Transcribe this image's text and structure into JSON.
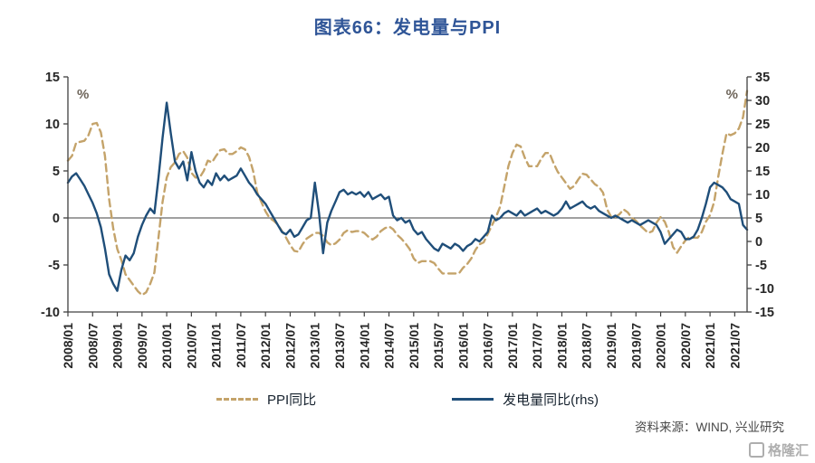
{
  "title": "图表66：发电量与PPI",
  "colors": {
    "title": "#2F5597",
    "ppi": "#C4A36A",
    "power": "#1F4E79",
    "axis": "#404040"
  },
  "left_axis": {
    "unit": "%",
    "min": -10,
    "max": 15,
    "step": 5
  },
  "right_axis": {
    "unit": "%",
    "min": -15,
    "max": 35,
    "step": 5
  },
  "legend": [
    {
      "label": "PPI同比",
      "style": "dashed",
      "color": "#C4A36A"
    },
    {
      "label": "发电量同比(rhs)",
      "style": "solid",
      "color": "#1F4E79"
    }
  ],
  "source": "资料来源：WIND, 兴业研究",
  "watermark": {
    "text": "格隆汇"
  },
  "chart_data": {
    "type": "line",
    "title": "图表66：发电量与PPI",
    "xlabel": "",
    "ylabel_left": "%",
    "ylabel_right": "%",
    "left_ylim": [
      -10,
      15
    ],
    "right_ylim": [
      -15,
      35
    ],
    "grid": false,
    "legend_position": "bottom",
    "x_frequency": "monthly",
    "x_start": "2008/01",
    "x_end": "2021/10",
    "x_tick_labels": [
      "2008/01",
      "2008/07",
      "2009/01",
      "2009/07",
      "2010/01",
      "2010/07",
      "2011/01",
      "2011/07",
      "2012/01",
      "2012/07",
      "2013/01",
      "2013/07",
      "2014/01",
      "2014/07",
      "2015/01",
      "2015/07",
      "2016/01",
      "2016/07",
      "2017/01",
      "2017/07",
      "2018/01",
      "2018/07",
      "2019/01",
      "2019/07",
      "2020/01",
      "2020/07",
      "2021/01",
      "2021/07"
    ],
    "x_tick_every_n_months": 6,
    "series": [
      {
        "name": "PPI同比",
        "axis": "left",
        "color": "#C4A36A",
        "dash": true,
        "values": [
          6.1,
          6.6,
          8.0,
          8.1,
          8.2,
          8.8,
          10.0,
          10.1,
          9.1,
          6.6,
          2.0,
          -1.1,
          -3.3,
          -4.5,
          -6.0,
          -6.6,
          -7.2,
          -7.8,
          -8.2,
          -7.9,
          -7.0,
          -5.8,
          -2.1,
          1.7,
          4.3,
          5.4,
          5.9,
          6.8,
          7.1,
          6.4,
          4.8,
          4.3,
          4.3,
          5.0,
          6.1,
          5.9,
          6.6,
          7.2,
          7.3,
          6.8,
          6.8,
          7.1,
          7.5,
          7.3,
          6.5,
          5.0,
          2.7,
          1.7,
          0.7,
          0.0,
          -0.3,
          -0.7,
          -1.4,
          -2.1,
          -2.9,
          -3.5,
          -3.6,
          -2.8,
          -2.2,
          -1.9,
          -1.6,
          -1.6,
          -1.9,
          -2.6,
          -2.9,
          -2.7,
          -2.3,
          -1.6,
          -1.3,
          -1.5,
          -1.4,
          -1.4,
          -1.6,
          -2.0,
          -2.3,
          -2.0,
          -1.4,
          -1.1,
          -0.9,
          -1.2,
          -1.8,
          -2.2,
          -2.7,
          -3.3,
          -4.3,
          -4.8,
          -4.6,
          -4.6,
          -4.6,
          -4.8,
          -5.4,
          -5.9,
          -5.9,
          -5.9,
          -5.9,
          -5.9,
          -5.3,
          -4.9,
          -4.3,
          -3.4,
          -2.8,
          -2.6,
          -1.7,
          -0.8,
          0.1,
          1.2,
          3.3,
          5.5,
          6.9,
          7.8,
          7.6,
          6.4,
          5.5,
          5.5,
          5.5,
          6.3,
          6.9,
          6.9,
          5.8,
          4.9,
          4.3,
          3.7,
          3.1,
          3.4,
          4.1,
          4.7,
          4.6,
          4.1,
          3.6,
          3.3,
          2.7,
          0.9,
          0.1,
          0.1,
          0.4,
          0.9,
          0.6,
          0.0,
          -0.3,
          -0.8,
          -1.2,
          -1.6,
          -1.4,
          -0.5,
          0.1,
          -0.4,
          -1.5,
          -3.1,
          -3.7,
          -3.0,
          -2.4,
          -2.0,
          -2.1,
          -2.1,
          -1.5,
          -0.4,
          0.3,
          1.7,
          4.4,
          6.8,
          9.0,
          8.8,
          9.0,
          9.5,
          10.7,
          13.5
        ]
      },
      {
        "name": "发电量同比(rhs)",
        "axis": "right",
        "color": "#1F4E79",
        "dash": false,
        "values": [
          12.5,
          13.8,
          14.5,
          13.2,
          11.8,
          10.0,
          8.2,
          6.0,
          3.0,
          -1.5,
          -7.0,
          -9.0,
          -10.5,
          -6.0,
          -3.0,
          -4.0,
          -2.5,
          1.0,
          3.5,
          5.5,
          7.0,
          6.0,
          13.5,
          22.0,
          29.5,
          23.0,
          17.0,
          15.5,
          17.0,
          13.0,
          19.0,
          15.0,
          12.5,
          11.5,
          13.0,
          12.0,
          14.5,
          13.0,
          14.0,
          13.0,
          13.5,
          14.0,
          15.5,
          14.0,
          12.5,
          11.5,
          10.0,
          9.0,
          8.0,
          6.5,
          5.0,
          3.5,
          2.0,
          1.5,
          2.5,
          1.0,
          1.5,
          3.0,
          4.5,
          5.0,
          12.5,
          6.0,
          -2.5,
          4.0,
          6.5,
          8.5,
          10.5,
          11.0,
          10.0,
          10.5,
          10.0,
          10.5,
          9.5,
          10.5,
          9.0,
          9.5,
          10.0,
          9.0,
          9.5,
          5.5,
          4.5,
          5.0,
          4.0,
          4.5,
          2.5,
          1.5,
          2.0,
          0.5,
          -0.5,
          -1.5,
          -2.0,
          -0.5,
          -1.0,
          -1.5,
          -0.5,
          -1.0,
          -2.0,
          -1.0,
          -0.5,
          0.5,
          0.0,
          1.0,
          2.0,
          5.5,
          4.5,
          5.0,
          6.0,
          6.5,
          6.0,
          5.5,
          6.5,
          5.5,
          6.0,
          6.5,
          7.0,
          6.0,
          6.5,
          6.0,
          5.5,
          6.0,
          7.0,
          8.5,
          7.0,
          7.5,
          8.0,
          8.5,
          7.5,
          7.0,
          7.5,
          6.5,
          6.0,
          5.5,
          5.0,
          5.5,
          5.0,
          4.5,
          4.0,
          4.5,
          4.0,
          3.5,
          4.0,
          4.5,
          4.0,
          3.5,
          2.0,
          -0.5,
          0.5,
          1.5,
          2.5,
          2.0,
          0.5,
          0.5,
          1.0,
          2.5,
          5.0,
          8.0,
          11.5,
          12.5,
          12.0,
          11.5,
          10.5,
          9.0,
          8.5,
          8.0,
          3.5,
          2.5
        ]
      }
    ]
  }
}
